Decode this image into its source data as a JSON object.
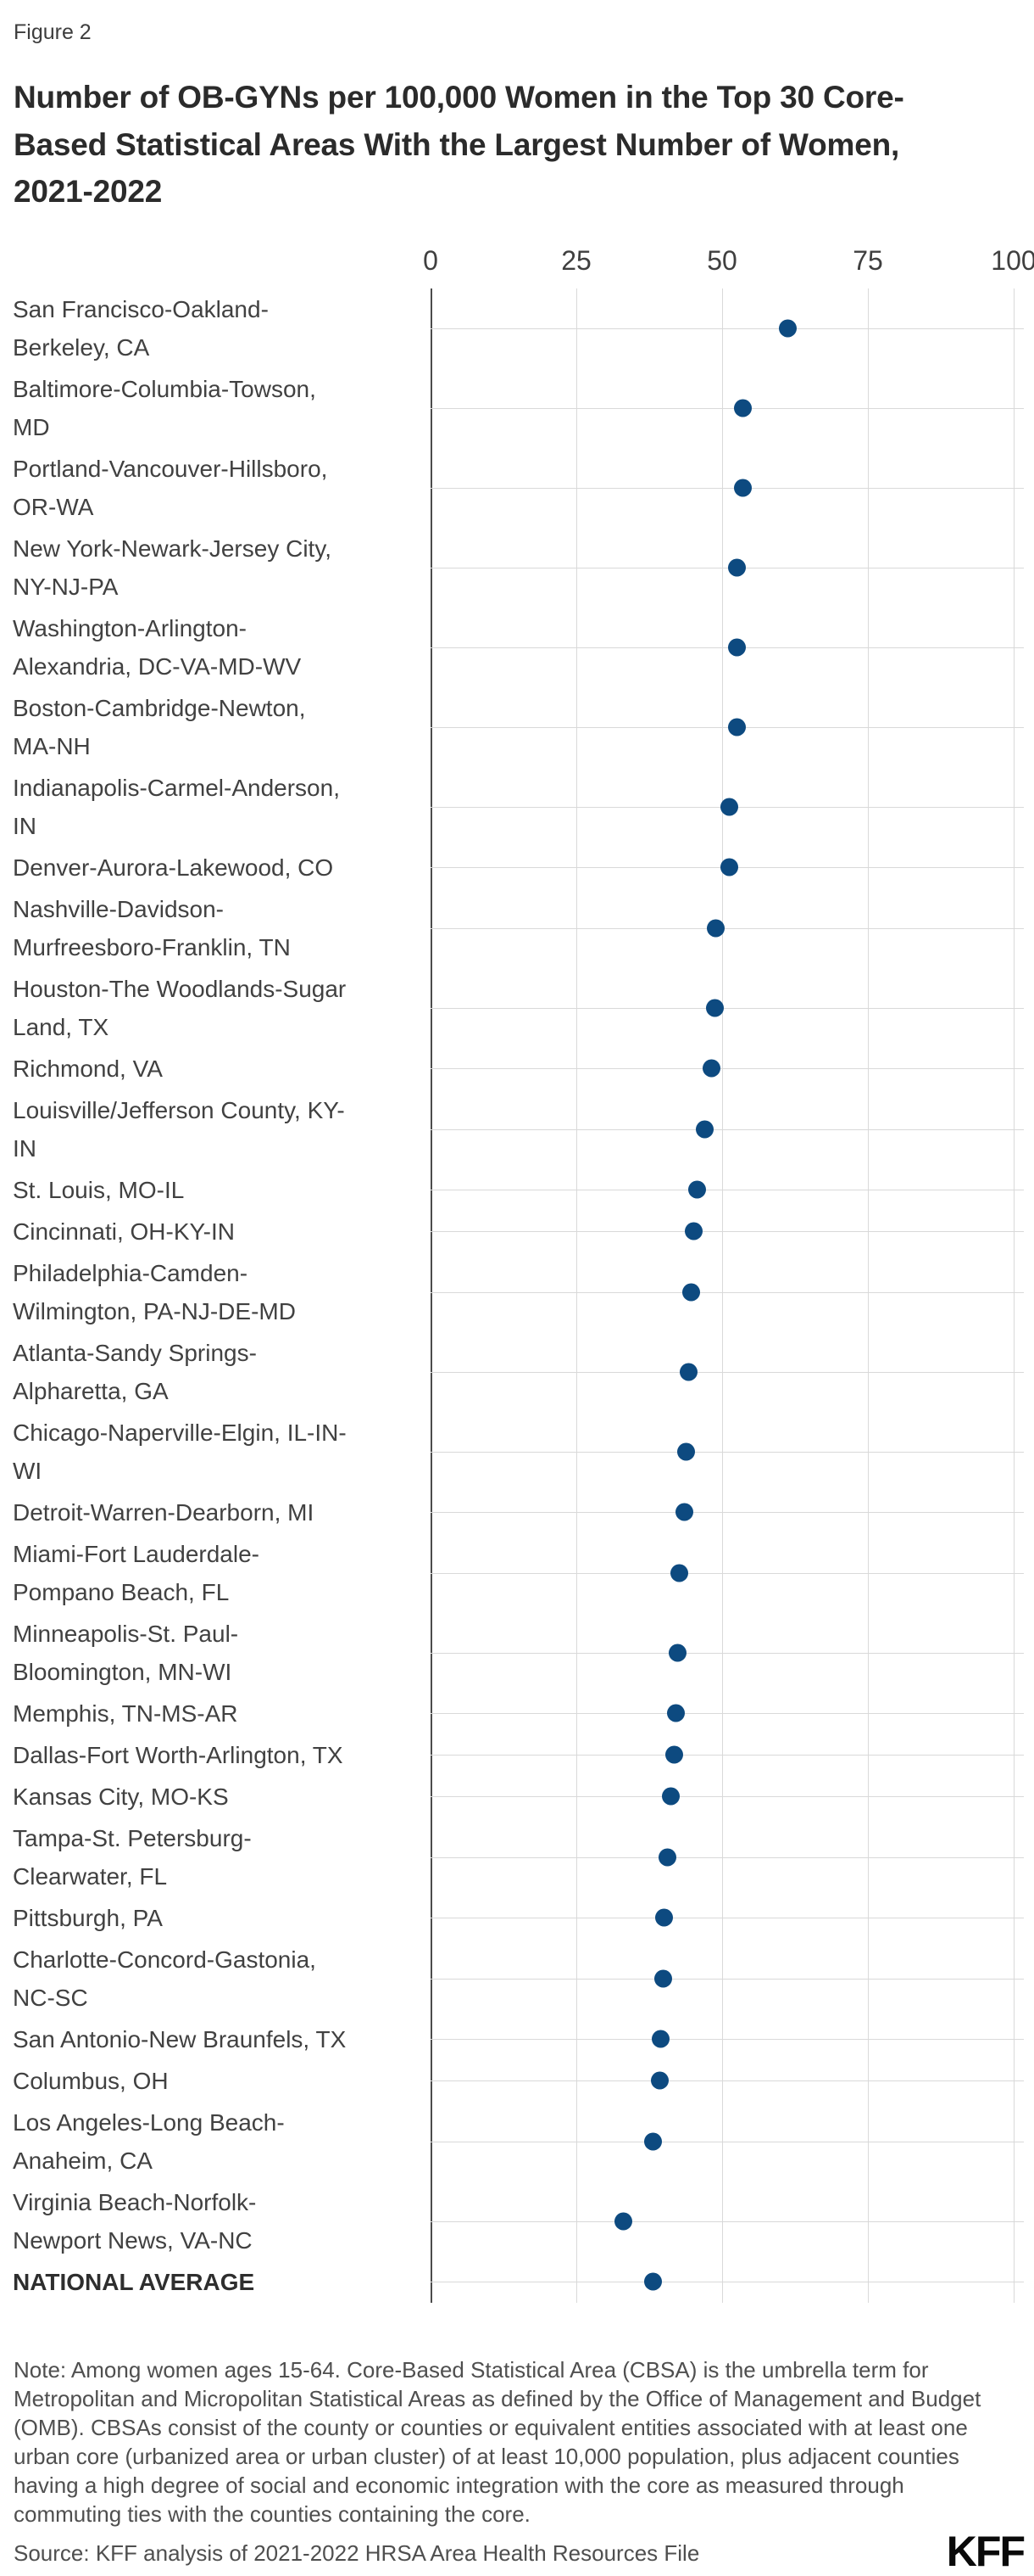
{
  "figure_label": "Figure 2",
  "title": "Number of OB-GYNs per 100,000 Women in the Top 30 Core-Based Statistical Areas With the Largest Number of Women, 2021-2022",
  "title_lines": [
    "Number of OB-GYNs per 100,000 Women in the Top 30 Core-",
    "Based Statistical Areas With the Largest Number of Women,",
    "2021-2022"
  ],
  "chart_data": {
    "type": "scatter",
    "orientation": "horizontal-dot-plot",
    "xlim": [
      0,
      100
    ],
    "x_ticks": [
      0,
      25,
      50,
      75,
      100
    ],
    "grid": true,
    "dot_color": "#0d4a80",
    "axis_color": "#4c4c4c",
    "gridline_color": "#d9d9d9",
    "categories": [
      "San Francisco-Oakland-Berkeley, CA",
      "Baltimore-Columbia-Towson, MD",
      "Portland-Vancouver-Hillsboro, OR-WA",
      "New York-Newark-Jersey City, NY-NJ-PA",
      "Washington-Arlington-Alexandria, DC-VA-MD-WV",
      "Boston-Cambridge-Newton, MA-NH",
      "Indianapolis-Carmel-Anderson, IN",
      "Denver-Aurora-Lakewood, CO",
      "Nashville-Davidson-Murfreesboro-Franklin, TN",
      "Houston-The Woodlands-Sugar Land, TX",
      "Richmond, VA",
      "Louisville/Jefferson County, KY-IN",
      "St. Louis, MO-IL",
      "Cincinnati, OH-KY-IN",
      "Philadelphia-Camden-Wilmington, PA-NJ-DE-MD",
      "Atlanta-Sandy Springs-Alpharetta, GA",
      "Chicago-Naperville-Elgin, IL-IN-WI",
      "Detroit-Warren-Dearborn, MI",
      "Miami-Fort Lauderdale-Pompano Beach, FL",
      "Minneapolis-St. Paul-Bloomington, MN-WI",
      "Memphis, TN-MS-AR",
      "Dallas-Fort Worth-Arlington, TX",
      "Kansas City, MO-KS",
      "Tampa-St. Petersburg-Clearwater, FL",
      "Pittsburgh, PA",
      "Charlotte-Concord-Gastonia, NC-SC",
      "San Antonio-New Braunfels, TX",
      "Columbus, OH",
      "Los Angeles-Long Beach-Anaheim, CA",
      "Virginia Beach-Norfolk-Newport News, VA-NC",
      "NATIONAL AVERAGE"
    ],
    "label_lines": [
      [
        "San Francisco-Oakland-",
        "Berkeley, CA"
      ],
      [
        "Baltimore-Columbia-Towson,",
        "MD"
      ],
      [
        "Portland-Vancouver-Hillsboro,",
        "OR-WA"
      ],
      [
        "New York-Newark-Jersey City,",
        "NY-NJ-PA"
      ],
      [
        "Washington-Arlington-",
        "Alexandria, DC-VA-MD-WV"
      ],
      [
        "Boston-Cambridge-Newton,",
        "MA-NH"
      ],
      [
        "Indianapolis-Carmel-Anderson,",
        "IN"
      ],
      [
        "Denver-Aurora-Lakewood, CO"
      ],
      [
        "Nashville-Davidson-",
        "Murfreesboro-Franklin, TN"
      ],
      [
        "Houston-The Woodlands-Sugar",
        "Land, TX"
      ],
      [
        "Richmond, VA"
      ],
      [
        "Louisville/Jefferson County, KY-",
        "IN"
      ],
      [
        "St. Louis, MO-IL"
      ],
      [
        "Cincinnati, OH-KY-IN"
      ],
      [
        "Philadelphia-Camden-",
        "Wilmington, PA-NJ-DE-MD"
      ],
      [
        "Atlanta-Sandy Springs-",
        "Alpharetta, GA"
      ],
      [
        "Chicago-Naperville-Elgin, IL-IN-",
        "WI"
      ],
      [
        "Detroit-Warren-Dearborn, MI"
      ],
      [
        "Miami-Fort Lauderdale-",
        "Pompano Beach, FL"
      ],
      [
        "Minneapolis-St. Paul-",
        "Bloomington, MN-WI"
      ],
      [
        "Memphis, TN-MS-AR"
      ],
      [
        "Dallas-Fort Worth-Arlington, TX"
      ],
      [
        "Kansas City, MO-KS"
      ],
      [
        "Tampa-St. Petersburg-",
        "Clearwater, FL"
      ],
      [
        "Pittsburgh, PA"
      ],
      [
        "Charlotte-Concord-Gastonia,",
        "NC-SC"
      ],
      [
        "San Antonio-New Braunfels, TX"
      ],
      [
        "Columbus, OH"
      ],
      [
        "Los Angeles-Long Beach-",
        "Anaheim, CA"
      ],
      [
        "Virginia Beach-Norfolk-",
        "Newport News, VA-NC"
      ],
      [
        "NATIONAL AVERAGE"
      ]
    ],
    "values": [
      61.2,
      53.5,
      53.5,
      52.6,
      52.5,
      52.5,
      51.3,
      51.2,
      48.9,
      48.8,
      48.2,
      47.0,
      45.7,
      45.2,
      44.7,
      44.2,
      43.8,
      43.6,
      42.6,
      42.3,
      42.1,
      41.8,
      41.2,
      40.6,
      40.1,
      39.9,
      39.5,
      39.3,
      38.2,
      33.1,
      38.2
    ],
    "bold_index": 30
  },
  "note": "Note: Among women ages 15-64. Core-Based Statistical Area (CBSA) is the umbrella term for Metropolitan and Micropolitan Statistical Areas as defined by the Office of Management and Budget (OMB). CBSAs consist of the county or counties or equivalent entities associated with at least one urban core (urbanized area or urban cluster) of at least 10,000 population, plus adjacent counties having a high degree of social and economic integration with the core as measured through commuting ties with the counties containing the core.",
  "source": "Source: KFF analysis of 2021-2022 HRSA Area Health Resources File",
  "logo_text": "KFF"
}
